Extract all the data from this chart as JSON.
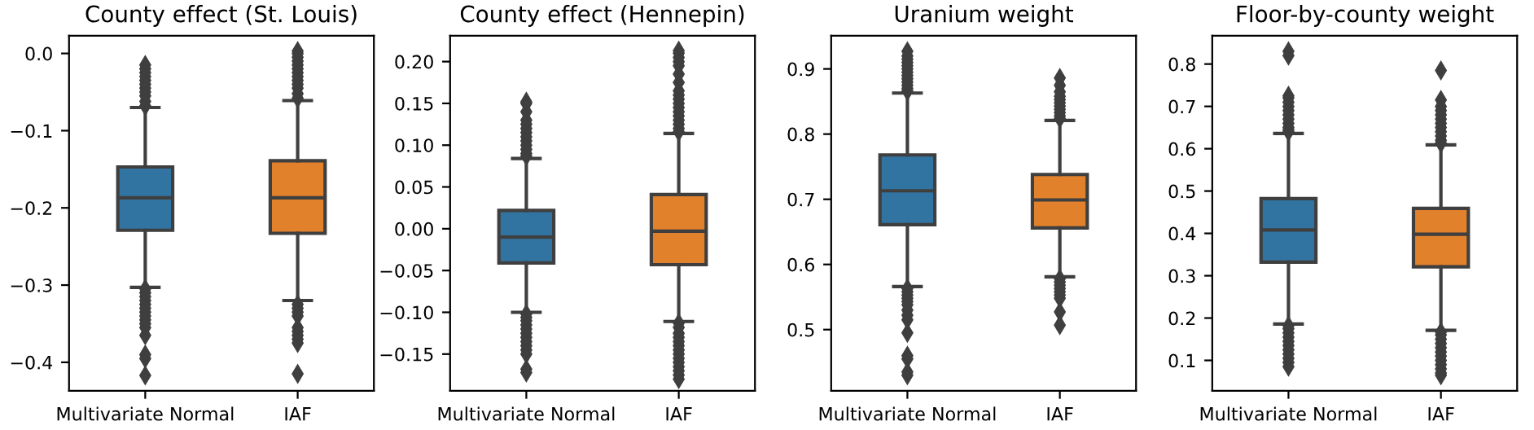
{
  "chart_data": [
    {
      "type": "box",
      "title": "County effect (St. Louis)",
      "categories": [
        "Multivariate Normal",
        "IAF"
      ],
      "colors": [
        "#3274a1",
        "#e1812c"
      ],
      "marker": "diamond",
      "grid": false,
      "ylim": [
        -0.437,
        0.023
      ],
      "yticks": [
        {
          "value": -0.4,
          "label": "−0.4"
        },
        {
          "value": -0.3,
          "label": "−0.3"
        },
        {
          "value": -0.2,
          "label": "−0.2"
        },
        {
          "value": -0.1,
          "label": "−0.1"
        },
        {
          "value": 0.0,
          "label": "0.0"
        }
      ],
      "boxes": [
        {
          "low": -0.303,
          "q1": -0.229,
          "median": -0.187,
          "q3": -0.147,
          "high": -0.07,
          "outliers": [
            -0.068,
            -0.062,
            -0.055,
            -0.05,
            -0.045,
            -0.04,
            -0.035,
            -0.03,
            -0.025,
            -0.02,
            -0.015,
            -0.305,
            -0.31,
            -0.315,
            -0.32,
            -0.325,
            -0.33,
            -0.335,
            -0.34,
            -0.345,
            -0.35,
            -0.355,
            -0.365,
            -0.39,
            -0.395,
            -0.417
          ]
        },
        {
          "low": -0.32,
          "q1": -0.233,
          "median": -0.187,
          "q3": -0.139,
          "high": -0.061,
          "outliers": [
            -0.058,
            -0.052,
            -0.045,
            -0.04,
            -0.035,
            -0.03,
            -0.025,
            -0.02,
            -0.015,
            -0.01,
            -0.005,
            0.0,
            0.003,
            -0.325,
            -0.33,
            -0.335,
            -0.34,
            -0.355,
            -0.36,
            -0.365,
            -0.37,
            -0.375,
            -0.415
          ]
        }
      ]
    },
    {
      "type": "box",
      "title": "County effect (Hennepin)",
      "categories": [
        "Multivariate Normal",
        "IAF"
      ],
      "colors": [
        "#3274a1",
        "#e1812c"
      ],
      "marker": "diamond",
      "grid": false,
      "ylim": [
        -0.194,
        0.231
      ],
      "yticks": [
        {
          "value": -0.15,
          "label": "−0.15"
        },
        {
          "value": -0.1,
          "label": "−0.10"
        },
        {
          "value": -0.05,
          "label": "−0.05"
        },
        {
          "value": 0.0,
          "label": "0.00"
        },
        {
          "value": 0.05,
          "label": "0.05"
        },
        {
          "value": 0.1,
          "label": "0.10"
        },
        {
          "value": 0.15,
          "label": "0.15"
        },
        {
          "value": 0.2,
          "label": "0.20"
        }
      ],
      "boxes": [
        {
          "low": -0.1,
          "q1": -0.041,
          "median": -0.01,
          "q3": 0.022,
          "high": 0.084,
          "outliers": [
            0.087,
            0.09,
            0.095,
            0.1,
            0.105,
            0.11,
            0.115,
            0.12,
            0.125,
            0.13,
            0.14,
            0.15,
            0.152,
            -0.102,
            -0.106,
            -0.11,
            -0.115,
            -0.12,
            -0.125,
            -0.13,
            -0.135,
            -0.14,
            -0.145,
            -0.15,
            -0.168,
            -0.172
          ]
        },
        {
          "low": -0.111,
          "q1": -0.043,
          "median": -0.003,
          "q3": 0.041,
          "high": 0.114,
          "outliers": [
            0.116,
            0.12,
            0.125,
            0.13,
            0.135,
            0.14,
            0.145,
            0.15,
            0.155,
            0.16,
            0.165,
            0.175,
            0.185,
            0.195,
            0.2,
            0.205,
            0.21,
            0.213,
            -0.113,
            -0.118,
            -0.125,
            -0.13,
            -0.135,
            -0.14,
            -0.145,
            -0.15,
            -0.155,
            -0.16,
            -0.165,
            -0.17,
            -0.175,
            -0.18
          ]
        }
      ]
    },
    {
      "type": "box",
      "title": "Uranium weight",
      "categories": [
        "Multivariate Normal",
        "IAF"
      ],
      "colors": [
        "#3274a1",
        "#e1812c"
      ],
      "marker": "diamond",
      "grid": false,
      "ylim": [
        0.406,
        0.951
      ],
      "yticks": [
        0.5,
        0.6,
        0.7,
        0.8,
        0.9
      ],
      "boxes": [
        {
          "low": 0.566,
          "q1": 0.661,
          "median": 0.713,
          "q3": 0.768,
          "high": 0.863,
          "outliers": [
            0.866,
            0.87,
            0.875,
            0.88,
            0.885,
            0.89,
            0.895,
            0.9,
            0.905,
            0.91,
            0.915,
            0.92,
            0.927,
            0.563,
            0.558,
            0.553,
            0.548,
            0.543,
            0.538,
            0.53,
            0.522,
            0.515,
            0.495,
            0.46,
            0.455,
            0.435,
            0.43
          ]
        },
        {
          "low": 0.581,
          "q1": 0.656,
          "median": 0.699,
          "q3": 0.738,
          "high": 0.821,
          "outliers": [
            0.824,
            0.828,
            0.833,
            0.838,
            0.843,
            0.848,
            0.853,
            0.858,
            0.865,
            0.875,
            0.886,
            0.578,
            0.573,
            0.568,
            0.563,
            0.558,
            0.553,
            0.548,
            0.527,
            0.507
          ]
        }
      ]
    },
    {
      "type": "box",
      "title": "Floor-by-county weight",
      "categories": [
        "Multivariate Normal",
        "IAF"
      ],
      "colors": [
        "#3274a1",
        "#e1812c"
      ],
      "marker": "diamond",
      "grid": false,
      "ylim": [
        0.028,
        0.867
      ],
      "yticks": [
        0.1,
        0.2,
        0.3,
        0.4,
        0.5,
        0.6,
        0.7,
        0.8
      ],
      "boxes": [
        {
          "low": 0.186,
          "q1": 0.332,
          "median": 0.408,
          "q3": 0.482,
          "high": 0.636,
          "outliers": [
            0.64,
            0.645,
            0.65,
            0.66,
            0.67,
            0.68,
            0.69,
            0.7,
            0.71,
            0.72,
            0.725,
            0.82,
            0.83,
            0.182,
            0.175,
            0.165,
            0.155,
            0.145,
            0.135,
            0.125,
            0.115,
            0.105,
            0.095,
            0.085
          ]
        },
        {
          "low": 0.171,
          "q1": 0.321,
          "median": 0.398,
          "q3": 0.459,
          "high": 0.609,
          "outliers": [
            0.613,
            0.62,
            0.63,
            0.64,
            0.65,
            0.66,
            0.67,
            0.68,
            0.69,
            0.7,
            0.715,
            0.785,
            0.167,
            0.16,
            0.15,
            0.14,
            0.13,
            0.12,
            0.11,
            0.1,
            0.09,
            0.08,
            0.07,
            0.065
          ]
        }
      ]
    }
  ]
}
